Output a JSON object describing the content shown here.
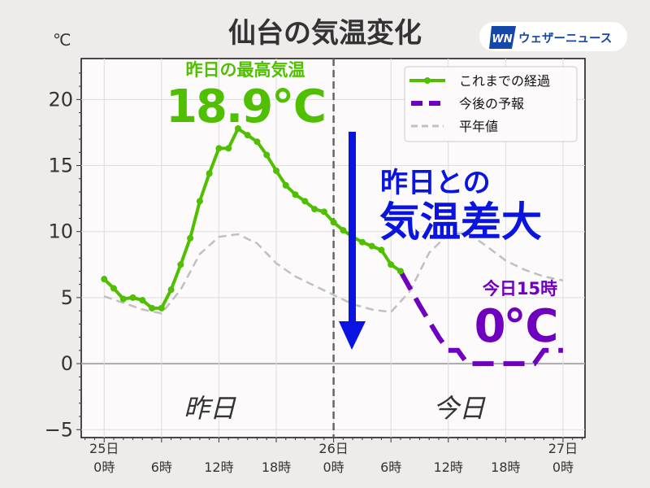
{
  "chart_data": {
    "type": "line",
    "title": "仙台の気温変化",
    "ylabel": "℃",
    "xlabel": "",
    "ylim": [
      -5.6,
      23.1
    ],
    "xlim_hours": [
      -2.4,
      50.3
    ],
    "grid": true,
    "yticks": [
      {
        "v": -5,
        "label": "−5"
      },
      {
        "v": 0,
        "label": "0"
      },
      {
        "v": 5,
        "label": "5"
      },
      {
        "v": 10,
        "label": "10"
      },
      {
        "v": 15,
        "label": "15"
      },
      {
        "v": 20,
        "label": "20"
      }
    ],
    "xticks": [
      {
        "h": 0,
        "l1": "25日",
        "l2": "0時"
      },
      {
        "h": 6,
        "l1": "",
        "l2": "6時"
      },
      {
        "h": 12,
        "l1": "",
        "l2": "12時"
      },
      {
        "h": 18,
        "l1": "",
        "l2": "18時"
      },
      {
        "h": 24,
        "l1": "26日",
        "l2": "0時"
      },
      {
        "h": 30,
        "l1": "",
        "l2": "6時"
      },
      {
        "h": 36,
        "l1": "",
        "l2": "12時"
      },
      {
        "h": 42,
        "l1": "",
        "l2": "18時"
      },
      {
        "h": 48,
        "l1": "27日",
        "l2": "0時"
      }
    ],
    "legend_position": "top-right",
    "series": [
      {
        "name": "これまでの経過",
        "color": "#4fbf00",
        "style": "solid-markers",
        "x": [
          0,
          1,
          2,
          3,
          4,
          5,
          6,
          7,
          8,
          9,
          10,
          11,
          12,
          13,
          14,
          15,
          16,
          17,
          18,
          19,
          20,
          21,
          22,
          23,
          24,
          25,
          26,
          27,
          28,
          29,
          30,
          31
        ],
        "y": [
          6.4,
          5.7,
          4.9,
          5.0,
          4.8,
          4.2,
          4.2,
          5.6,
          7.5,
          9.5,
          12.3,
          14.4,
          16.3,
          16.3,
          17.8,
          17.3,
          16.8,
          15.8,
          14.6,
          13.5,
          12.8,
          12.3,
          11.7,
          11.5,
          10.7,
          10.1,
          9.6,
          9.2,
          8.9,
          8.6,
          7.5,
          7.0
        ]
      },
      {
        "name": "今後の予報",
        "color": "#7000c0",
        "style": "dashed",
        "x": [
          31,
          33,
          35,
          36,
          37,
          38,
          40,
          42,
          44,
          45,
          46,
          48
        ],
        "y": [
          7.0,
          4.4,
          2.0,
          1.0,
          1.0,
          0.0,
          0.0,
          0.0,
          0.0,
          0.0,
          1.0,
          1.0
        ]
      },
      {
        "name": "平年値",
        "color": "#c0c0c0",
        "style": "dashed",
        "x": [
          0,
          2,
          4,
          6,
          8,
          10,
          12,
          14,
          16,
          18,
          20,
          22,
          24,
          26,
          28,
          30,
          32,
          34,
          36,
          38,
          40,
          42,
          44,
          46,
          48
        ],
        "y": [
          5.1,
          4.6,
          4.1,
          3.8,
          5.6,
          8.3,
          9.6,
          9.8,
          9.1,
          7.6,
          6.6,
          5.9,
          5.2,
          4.5,
          4.1,
          3.9,
          5.5,
          8.4,
          9.8,
          9.9,
          8.9,
          7.8,
          7.1,
          6.6,
          6.3
        ]
      }
    ],
    "divider_hour": 24,
    "annotations": {
      "yesterday_label": "昨日",
      "today_label": "今日",
      "max_title": "昨日の最高気温",
      "max_value": "18.9℃",
      "diff_line1": "昨日との",
      "diff_line2": "気温差大",
      "forecast_title": "今日15時",
      "forecast_value": "0℃"
    }
  },
  "logo": {
    "mark": "WN",
    "text": "ウェザーニュース"
  },
  "colors": {
    "green": "#4fbf00",
    "purple": "#7000c0",
    "blue": "#0a14e0",
    "gray": "#c0c0c0"
  }
}
